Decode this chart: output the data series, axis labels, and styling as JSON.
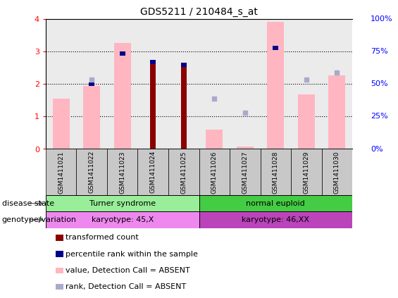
{
  "title": "GDS5211 / 210484_s_at",
  "samples": [
    "GSM1411021",
    "GSM1411022",
    "GSM1411023",
    "GSM1411024",
    "GSM1411025",
    "GSM1411026",
    "GSM1411027",
    "GSM1411028",
    "GSM1411029",
    "GSM1411030"
  ],
  "transformed_count": [
    0,
    0,
    0,
    2.63,
    2.55,
    0,
    0,
    0,
    0,
    0
  ],
  "percentile_rank_left": [
    0,
    2.0,
    2.95,
    2.68,
    2.6,
    0,
    0,
    3.12,
    0,
    0
  ],
  "value_absent": [
    1.55,
    1.95,
    3.28,
    0,
    0,
    0.6,
    0.07,
    3.93,
    1.68,
    2.27
  ],
  "rank_absent_left": [
    0,
    2.15,
    0,
    0,
    0,
    1.55,
    1.12,
    0,
    2.15,
    2.35
  ],
  "ylim_left": [
    0,
    4
  ],
  "yticks_left": [
    0,
    1,
    2,
    3,
    4
  ],
  "yticks_right_labels": [
    "0%",
    "25%",
    "50%",
    "75%",
    "100%"
  ],
  "bar_color_transformed": "#8B0000",
  "bar_color_percentile": "#00008B",
  "bar_color_value_absent": "#FFB6C1",
  "dot_color_rank_absent": "#AAAACC",
  "col_bg_color": "#C8C8C8",
  "disease_state_groups": [
    {
      "label": "Turner syndrome",
      "start": 0,
      "end": 5,
      "color": "#99EE99"
    },
    {
      "label": "normal euploid",
      "start": 5,
      "end": 10,
      "color": "#44CC44"
    }
  ],
  "genotype_groups": [
    {
      "label": "karyotype: 45,X",
      "start": 0,
      "end": 5,
      "color": "#EE88EE"
    },
    {
      "label": "karyotype: 46,XX",
      "start": 5,
      "end": 10,
      "color": "#BB44BB"
    }
  ],
  "legend_items": [
    {
      "label": "transformed count",
      "color": "#8B0000"
    },
    {
      "label": "percentile rank within the sample",
      "color": "#00008B"
    },
    {
      "label": "value, Detection Call = ABSENT",
      "color": "#FFB6C1"
    },
    {
      "label": "rank, Detection Call = ABSENT",
      "color": "#AAAACC"
    }
  ],
  "label_left_text": [
    "disease state",
    "genotype/variation"
  ]
}
